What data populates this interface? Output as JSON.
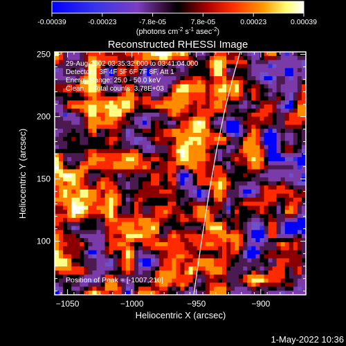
{
  "colorbar": {
    "tick_labels": [
      "-0.00039",
      "-0.00023",
      "-7.8e-05",
      "7.8e-05",
      "0.00023",
      "0.00039"
    ],
    "unit_label_parts": [
      "(photons cm",
      "-2",
      " s",
      "-1",
      " asec",
      "-2",
      ")"
    ]
  },
  "timestamp": "1-May-2022 10:36",
  "chart_data": {
    "type": "heatmap",
    "title": "Reconstructed RHESSI Image",
    "xlabel": "Heliocentric X (arcsec)",
    "ylabel": "Heliocentric Y (arcsec)",
    "xlim": [
      -1060,
      -865
    ],
    "ylim": [
      57,
      252
    ],
    "x_ticks": [
      -1050,
      -1000,
      -950,
      -900
    ],
    "x_tick_labels": [
      "−1050",
      "−1000",
      "−950",
      "−900"
    ],
    "y_ticks": [
      100,
      150,
      200,
      250
    ],
    "y_tick_labels": [
      "100",
      "150",
      "200",
      "250"
    ],
    "color_range": [
      -0.00039,
      0.00039
    ],
    "colormap": [
      "#0000ff",
      "#3030e0",
      "#6e50c8",
      "#7a3aa8",
      "#4a1a50",
      "#000000",
      "#8a0000",
      "#ff2a00",
      "#ff8c00",
      "#ffff88",
      "#ffffff"
    ],
    "annotations": [
      "29-Aug-2002 03:35:32.000 to 03:41:04.000",
      "Detectors: 3F 4F 5F 6F 7F 8F, Att 1",
      "Energy Range: 25.0 - 50.0 keV",
      "Clean     Total counts: 3.78E+03"
    ],
    "peak_label": "Position of Peak = [-1007,210]",
    "limb_curve": {
      "x": [
        -952,
        -946,
        -940,
        -934,
        -928,
        -922,
        -916
      ],
      "y": [
        57,
        100,
        140,
        175,
        205,
        230,
        252
      ]
    }
  }
}
